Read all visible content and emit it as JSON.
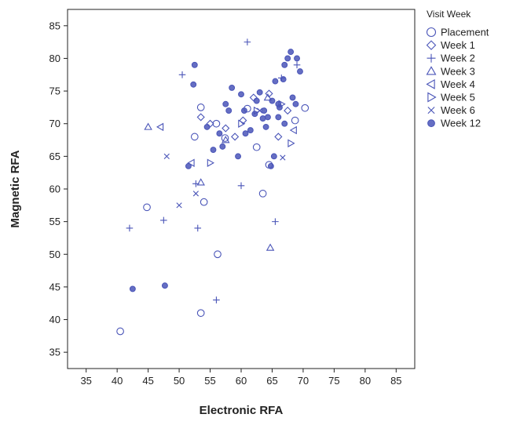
{
  "chart_data": {
    "type": "scatter",
    "title": "",
    "xlabel": "Electronic RFA",
    "ylabel": "Magnetic RFA",
    "xlim": [
      32,
      88
    ],
    "ylim": [
      32.5,
      87.5
    ],
    "xticks": [
      35,
      40,
      45,
      50,
      55,
      60,
      65,
      70,
      75,
      80,
      85
    ],
    "yticks": [
      35,
      40,
      45,
      50,
      55,
      60,
      65,
      70,
      75,
      80,
      85
    ],
    "grid": false,
    "color": "#4a55b8",
    "legend": {
      "title": "Visit Week",
      "position": "right-outside-top"
    },
    "series": [
      {
        "name": "Placement",
        "marker": "circle",
        "points": [
          [
            40.5,
            38.2
          ],
          [
            53.5,
            41
          ],
          [
            44.8,
            57.2
          ],
          [
            56.2,
            50
          ],
          [
            63.5,
            59.3
          ],
          [
            54,
            58
          ],
          [
            52.5,
            68
          ],
          [
            57.4,
            67.8
          ],
          [
            62.5,
            66.4
          ],
          [
            64.5,
            63.7
          ],
          [
            53.5,
            72.5
          ],
          [
            56,
            70
          ],
          [
            70.3,
            72.4
          ],
          [
            68.7,
            70.5
          ],
          [
            61,
            72.3
          ]
        ]
      },
      {
        "name": "Week 1",
        "marker": "diamond",
        "points": [
          [
            57.5,
            69.3
          ],
          [
            59,
            68
          ],
          [
            53.5,
            71
          ],
          [
            62,
            74
          ],
          [
            67.5,
            72
          ],
          [
            64.5,
            74.6
          ],
          [
            55,
            70
          ],
          [
            60.3,
            70.5
          ],
          [
            66,
            68
          ]
        ]
      },
      {
        "name": "Week 2",
        "marker": "plus",
        "points": [
          [
            42,
            54
          ],
          [
            47.5,
            55.2
          ],
          [
            53,
            54
          ],
          [
            56,
            43
          ],
          [
            65.5,
            55
          ],
          [
            61,
            82.5
          ],
          [
            50.5,
            77.5
          ],
          [
            60,
            60.5
          ],
          [
            52.7,
            60.8
          ],
          [
            66.5,
            77
          ],
          [
            69,
            79
          ]
        ]
      },
      {
        "name": "Week 3",
        "marker": "triangle-up",
        "points": [
          [
            45,
            69.5
          ],
          [
            64.7,
            51
          ],
          [
            53.5,
            61
          ],
          [
            57.5,
            67.5
          ],
          [
            64.3,
            74
          ]
        ]
      },
      {
        "name": "Week 4",
        "marker": "triangle-left",
        "points": [
          [
            47,
            69.5
          ],
          [
            52,
            64
          ],
          [
            68.5,
            69
          ]
        ]
      },
      {
        "name": "Week 5",
        "marker": "triangle-right",
        "points": [
          [
            55,
            64
          ],
          [
            60,
            70
          ],
          [
            62.5,
            72
          ],
          [
            66.5,
            73
          ],
          [
            68,
            67
          ]
        ]
      },
      {
        "name": "Week 6",
        "marker": "x",
        "points": [
          [
            48,
            65
          ],
          [
            50,
            57.5
          ],
          [
            52.7,
            59.3
          ],
          [
            63,
            72
          ],
          [
            66.7,
            64.8
          ]
        ]
      },
      {
        "name": "Week 12",
        "marker": "circle-filled",
        "points": [
          [
            42.5,
            44.7
          ],
          [
            47.7,
            45.2
          ],
          [
            51.5,
            63.5
          ],
          [
            52.3,
            76
          ],
          [
            52.5,
            79
          ],
          [
            57,
            66.5
          ],
          [
            58.5,
            75.5
          ],
          [
            60,
            74.5
          ],
          [
            62.5,
            73.5
          ],
          [
            63.7,
            72
          ],
          [
            64.3,
            71
          ],
          [
            65,
            73.5
          ],
          [
            64.8,
            63.5
          ],
          [
            66,
            71
          ],
          [
            67,
            79
          ],
          [
            67.5,
            80
          ],
          [
            68,
            81
          ],
          [
            69,
            80
          ],
          [
            69.5,
            78
          ],
          [
            68.3,
            74
          ],
          [
            67,
            70
          ],
          [
            66,
            73
          ],
          [
            65.5,
            76.5
          ],
          [
            60.5,
            72
          ],
          [
            61.5,
            69
          ],
          [
            58,
            72
          ],
          [
            56.5,
            68.5
          ],
          [
            59.5,
            65
          ],
          [
            62.2,
            71.5
          ],
          [
            63,
            74.8
          ],
          [
            64,
            69.5
          ],
          [
            65.3,
            65
          ],
          [
            66.8,
            76.8
          ],
          [
            68.8,
            73
          ],
          [
            57.5,
            73
          ],
          [
            55.5,
            66
          ],
          [
            54.5,
            69.5
          ],
          [
            60.7,
            68.5
          ],
          [
            63.5,
            70.8
          ],
          [
            66.2,
            72.5
          ]
        ]
      }
    ]
  }
}
